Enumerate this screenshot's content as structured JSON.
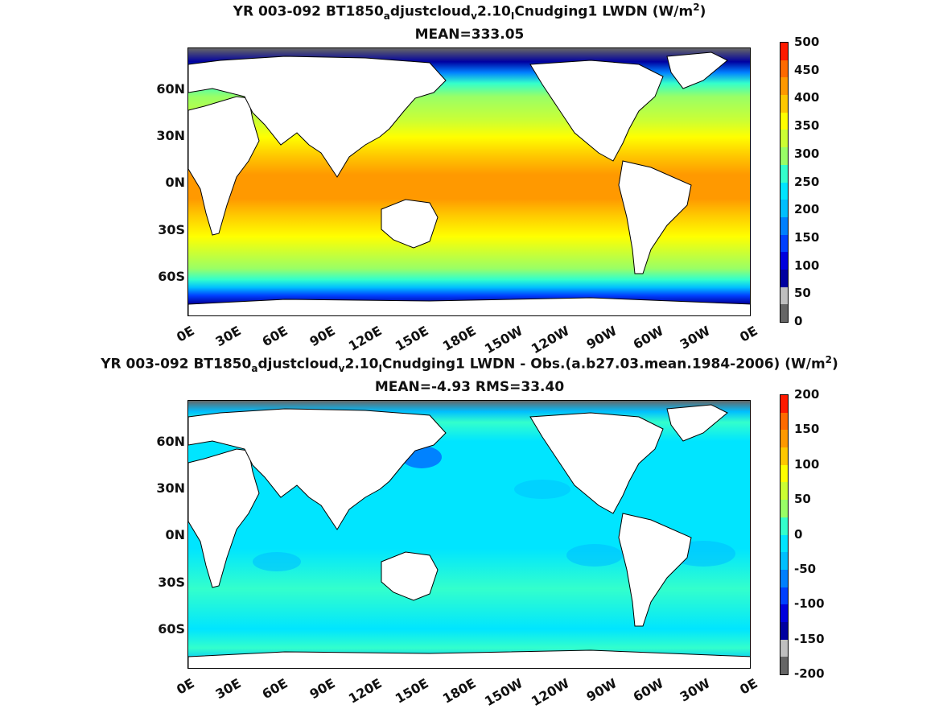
{
  "top": {
    "title_parts": [
      "YR 003-092 BT1850",
      "a",
      "djustcloud",
      "v",
      "2.10",
      "I",
      "Cnudging1 LWDN (W/m",
      "2",
      ")"
    ],
    "subtitle": "MEAN=333.05",
    "colorbar": {
      "ticks": [
        "500",
        "450",
        "400",
        "350",
        "300",
        "250",
        "200",
        "150",
        "100",
        "50",
        "0"
      ],
      "colors": [
        "#ff1a00",
        "#ff6a00",
        "#ff9900",
        "#ffc800",
        "#ffff00",
        "#ccff33",
        "#99ff66",
        "#33ffcc",
        "#00e5ff",
        "#00bfff",
        "#0080ff",
        "#0040ff",
        "#0000dd",
        "#0000a0",
        "#bfbfbf",
        "#666666"
      ]
    }
  },
  "bottom": {
    "title_parts": [
      "YR 003-092 BT1850",
      "a",
      "djustcloud",
      "v",
      "2.10",
      "I",
      "Cnudging1 LWDN - Obs.(a.b27.03.mean.1984-2006) (W/m",
      "2",
      ")"
    ],
    "subtitle": "MEAN=-4.93 RMS=33.40",
    "colorbar": {
      "ticks": [
        "200",
        "150",
        "100",
        "50",
        "0",
        "-50",
        "-100",
        "-150",
        "-200"
      ],
      "colors": [
        "#ff1a00",
        "#ff6a00",
        "#ff9900",
        "#ffc800",
        "#ffff00",
        "#ccff33",
        "#99ff66",
        "#33ffcc",
        "#00e5ff",
        "#00bfff",
        "#0080ff",
        "#0040ff",
        "#0000dd",
        "#0000a0",
        "#bfbfbf",
        "#666666"
      ]
    }
  },
  "lat_labels": [
    "60N",
    "30N",
    "0N",
    "30S",
    "60S"
  ],
  "lon_labels": [
    "0E",
    "30E",
    "60E",
    "90E",
    "120E",
    "150E",
    "180E",
    "150W",
    "120W",
    "90W",
    "60W",
    "30W",
    "0E"
  ]
}
